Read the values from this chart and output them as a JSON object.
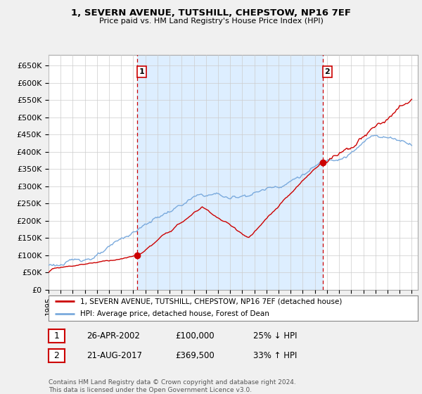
{
  "title": "1, SEVERN AVENUE, TUTSHILL, CHEPSTOW, NP16 7EF",
  "subtitle": "Price paid vs. HM Land Registry's House Price Index (HPI)",
  "ylim": [
    0,
    680000
  ],
  "yticks": [
    0,
    50000,
    100000,
    150000,
    200000,
    250000,
    300000,
    350000,
    400000,
    450000,
    500000,
    550000,
    600000,
    650000
  ],
  "ytick_labels": [
    "£0",
    "£50K",
    "£100K",
    "£150K",
    "£200K",
    "£250K",
    "£300K",
    "£350K",
    "£400K",
    "£450K",
    "£500K",
    "£550K",
    "£600K",
    "£650K"
  ],
  "sale1_date": 2002.32,
  "sale1_price": 100000,
  "sale2_date": 2017.64,
  "sale2_price": 369500,
  "sale_color": "#cc0000",
  "hpi_color": "#7aaadd",
  "vline_color": "#cc0000",
  "shade_color": "#ddeeff",
  "grid_color": "#cccccc",
  "legend_entry1": "1, SEVERN AVENUE, TUTSHILL, CHEPSTOW, NP16 7EF (detached house)",
  "legend_entry2": "HPI: Average price, detached house, Forest of Dean",
  "table_row1": [
    "1",
    "26-APR-2002",
    "£100,000",
    "25% ↓ HPI"
  ],
  "table_row2": [
    "2",
    "21-AUG-2017",
    "£369,500",
    "33% ↑ HPI"
  ],
  "footnote": "Contains HM Land Registry data © Crown copyright and database right 2024.\nThis data is licensed under the Open Government Licence v3.0.",
  "background_color": "#f0f0f0",
  "plot_bg_color": "#ffffff",
  "xlim_left": 1995.0,
  "xlim_right": 2025.5
}
